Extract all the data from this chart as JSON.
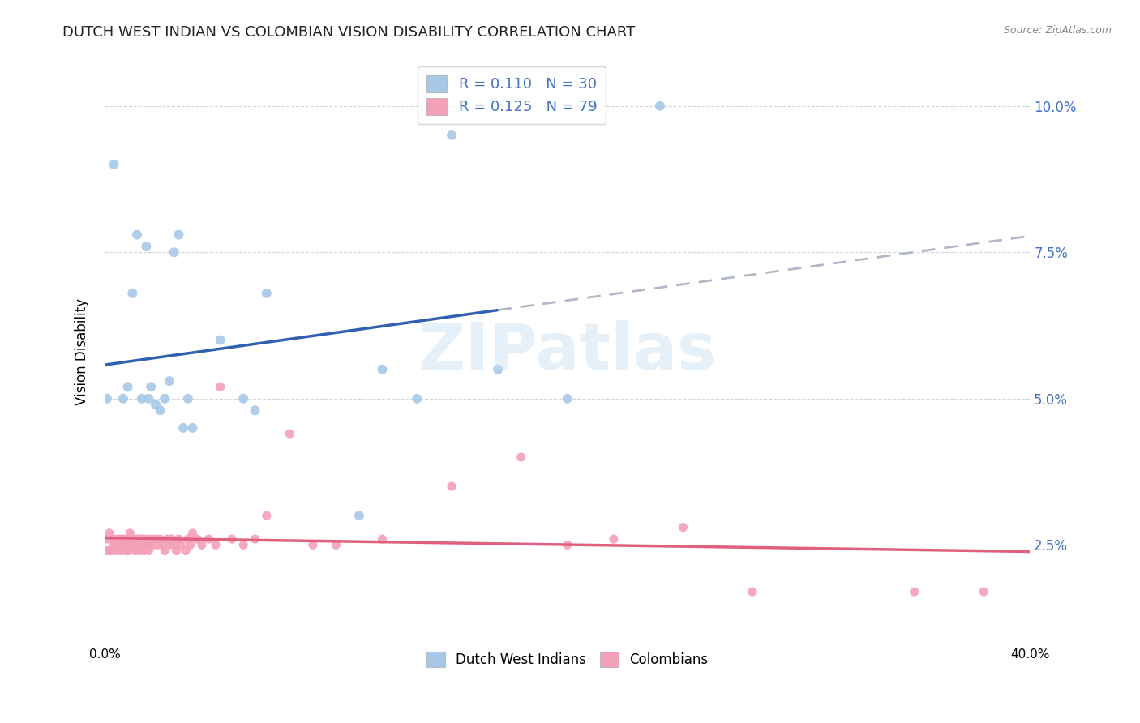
{
  "title": "DUTCH WEST INDIAN VS COLOMBIAN VISION DISABILITY CORRELATION CHART",
  "source": "Source: ZipAtlas.com",
  "ylabel": "Vision Disability",
  "ytick_labels": [
    "2.5%",
    "5.0%",
    "7.5%",
    "10.0%"
  ],
  "ytick_values": [
    0.025,
    0.05,
    0.075,
    0.1
  ],
  "xlim": [
    0.0,
    0.4
  ],
  "ylim": [
    0.008,
    0.108
  ],
  "blue_color": "#a8c8e8",
  "pink_color": "#f4a0b8",
  "blue_line_color": "#3060b0",
  "pink_line_color": "#e06080",
  "dashed_line_color": "#b0b8c8",
  "watermark": "ZIPatlas",
  "dutch_x": [
    0.001,
    0.004,
    0.008,
    0.01,
    0.012,
    0.014,
    0.016,
    0.018,
    0.019,
    0.02,
    0.022,
    0.024,
    0.026,
    0.028,
    0.03,
    0.032,
    0.034,
    0.036,
    0.038,
    0.05,
    0.06,
    0.065,
    0.07,
    0.11,
    0.12,
    0.135,
    0.15,
    0.17,
    0.2,
    0.24
  ],
  "dutch_y": [
    0.05,
    0.09,
    0.05,
    0.052,
    0.068,
    0.078,
    0.05,
    0.076,
    0.05,
    0.052,
    0.049,
    0.048,
    0.05,
    0.053,
    0.075,
    0.078,
    0.045,
    0.05,
    0.045,
    0.06,
    0.05,
    0.048,
    0.068,
    0.03,
    0.055,
    0.05,
    0.095,
    0.055,
    0.05,
    0.1
  ],
  "colombian_x": [
    0.001,
    0.001,
    0.002,
    0.002,
    0.003,
    0.003,
    0.004,
    0.004,
    0.005,
    0.005,
    0.006,
    0.006,
    0.007,
    0.007,
    0.008,
    0.008,
    0.009,
    0.009,
    0.01,
    0.01,
    0.011,
    0.011,
    0.012,
    0.012,
    0.013,
    0.013,
    0.014,
    0.014,
    0.015,
    0.015,
    0.016,
    0.016,
    0.017,
    0.017,
    0.018,
    0.018,
    0.019,
    0.019,
    0.02,
    0.02,
    0.021,
    0.022,
    0.023,
    0.024,
    0.025,
    0.026,
    0.027,
    0.028,
    0.029,
    0.03,
    0.031,
    0.032,
    0.033,
    0.035,
    0.036,
    0.037,
    0.038,
    0.04,
    0.042,
    0.045,
    0.048,
    0.05,
    0.055,
    0.06,
    0.065,
    0.07,
    0.08,
    0.09,
    0.1,
    0.12,
    0.15,
    0.18,
    0.2,
    0.22,
    0.25,
    0.28,
    0.35,
    0.38
  ],
  "colombian_y": [
    0.026,
    0.024,
    0.027,
    0.024,
    0.026,
    0.024,
    0.025,
    0.026,
    0.025,
    0.024,
    0.026,
    0.025,
    0.026,
    0.024,
    0.025,
    0.026,
    0.025,
    0.024,
    0.026,
    0.024,
    0.025,
    0.027,
    0.025,
    0.026,
    0.025,
    0.024,
    0.026,
    0.025,
    0.026,
    0.024,
    0.025,
    0.026,
    0.025,
    0.024,
    0.026,
    0.025,
    0.025,
    0.024,
    0.025,
    0.026,
    0.025,
    0.026,
    0.025,
    0.026,
    0.025,
    0.024,
    0.026,
    0.025,
    0.026,
    0.025,
    0.024,
    0.026,
    0.025,
    0.024,
    0.026,
    0.025,
    0.027,
    0.026,
    0.025,
    0.026,
    0.025,
    0.052,
    0.026,
    0.025,
    0.026,
    0.03,
    0.044,
    0.025,
    0.025,
    0.026,
    0.035,
    0.04,
    0.025,
    0.026,
    0.028,
    0.017,
    0.017,
    0.017
  ]
}
